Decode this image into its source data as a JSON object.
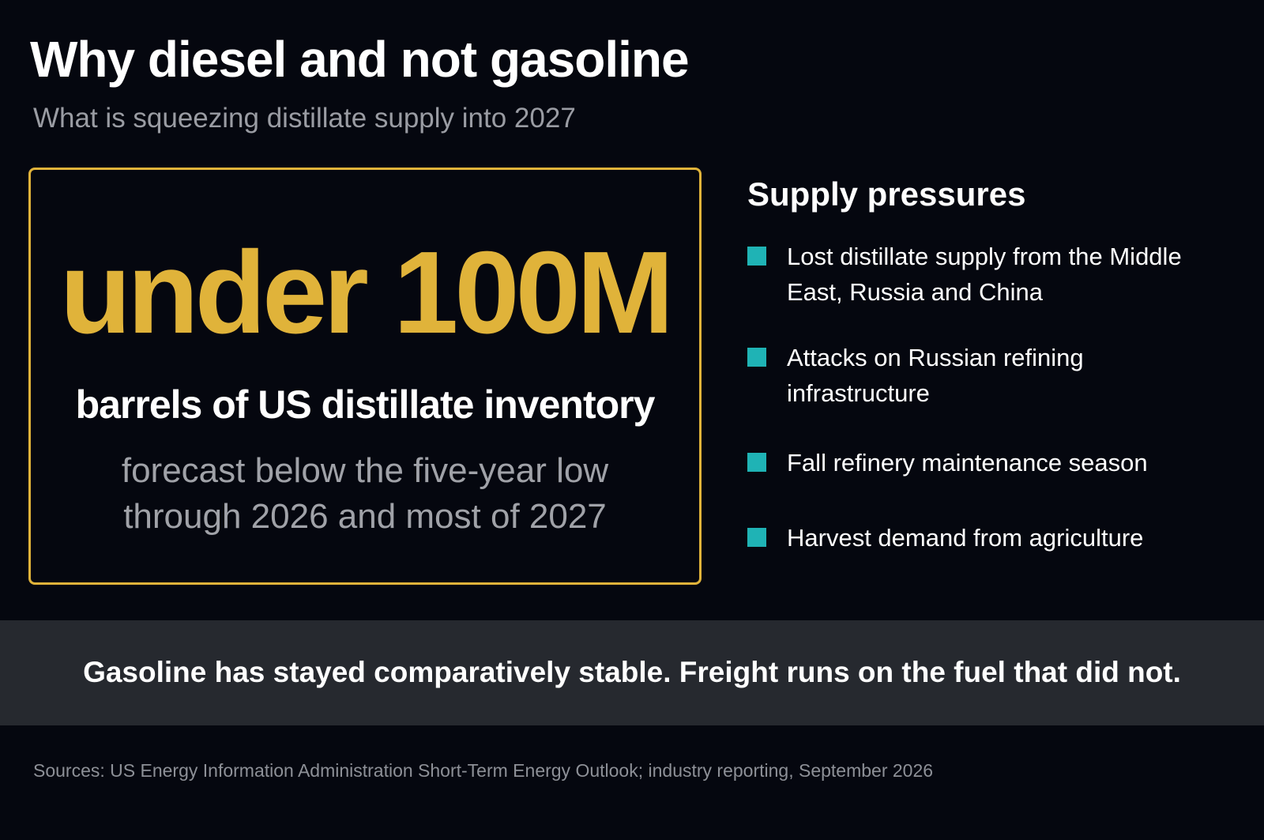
{
  "header": {
    "title": "Why diesel and not gasoline",
    "subtitle": "What is squeezing distillate supply into 2027"
  },
  "stat": {
    "value": "under 100M",
    "label": "barrels of US distillate inventory",
    "note": "forecast below the five-year low through 2026 and most of 2027"
  },
  "pressures": {
    "title": "Supply pressures",
    "items": [
      "Lost distillate supply from the Middle East, Russia and China",
      "Attacks on Russian refining infrastructure",
      "Fall refinery maintenance season",
      "Harvest demand from agriculture"
    ]
  },
  "banner": "Gasoline has stayed comparatively stable. Freight runs on the fuel that did not.",
  "source": "Sources: US Energy Information Administration Short-Term Energy Outlook; industry reporting, September 2026"
}
